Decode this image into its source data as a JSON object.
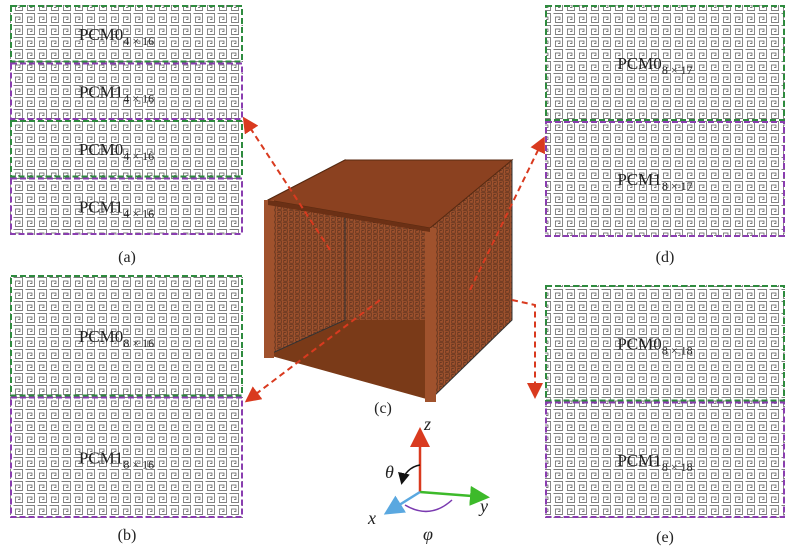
{
  "panels": [
    {
      "label": "(a)",
      "regions": [
        {
          "main": "PCM0",
          "sub": "4 × 16"
        },
        {
          "main": "PCM1",
          "sub": "4 × 16"
        },
        {
          "main": "PCM0",
          "sub": "4 × 16"
        },
        {
          "main": "PCM1",
          "sub": "4 × 16"
        }
      ]
    },
    {
      "label": "(b)",
      "regions": [
        {
          "main": "PCM0",
          "sub": "8 × 16"
        },
        {
          "main": "PCM1",
          "sub": "8 × 16"
        }
      ]
    },
    {
      "label": "(d)",
      "regions": [
        {
          "main": "PCM0",
          "sub": "8 × 17"
        },
        {
          "main": "PCM1",
          "sub": "8 × 17"
        }
      ]
    },
    {
      "label": "(e)",
      "regions": [
        {
          "main": "PCM0",
          "sub": "8 × 18"
        },
        {
          "main": "PCM1",
          "sub": "8 × 18"
        }
      ]
    }
  ],
  "cube_label": "(c)",
  "axes": {
    "z": "z",
    "y": "y",
    "x": "x",
    "theta": "θ",
    "phi": "φ"
  }
}
